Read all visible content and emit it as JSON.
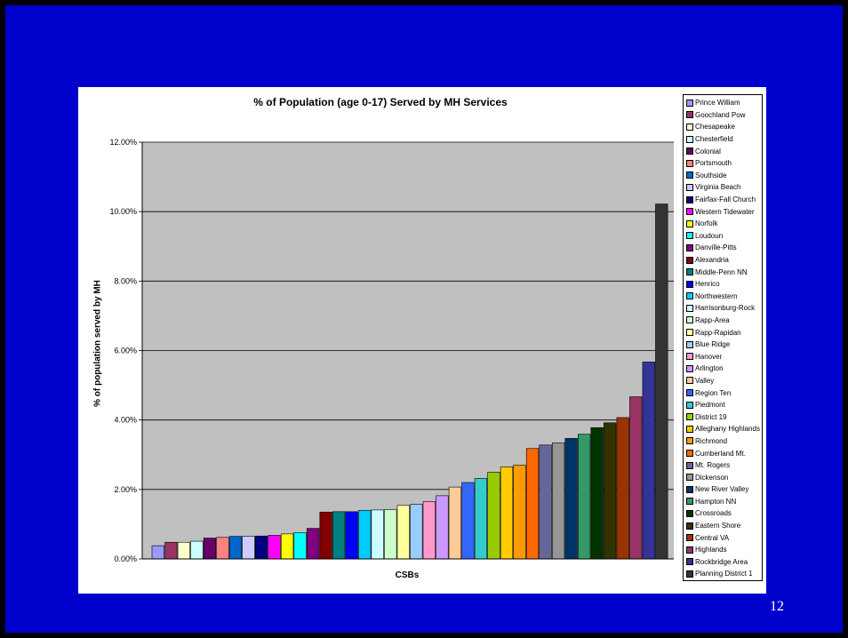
{
  "page_number": "12",
  "chart_data": {
    "type": "bar",
    "title": "% of Population (age 0-17) Served by MH Services",
    "xlabel": "CSBs",
    "ylabel": "% of population served by MH",
    "ylim": [
      0,
      0.12
    ],
    "y_ticks": [
      0,
      0.02,
      0.04,
      0.06,
      0.08,
      0.1,
      0.12
    ],
    "y_tick_labels": [
      "0.00%",
      "2.00%",
      "4.00%",
      "6.00%",
      "8.00%",
      "10.00%",
      "12.00%"
    ],
    "grid": true,
    "legend_position": "right",
    "plot_background": "#c0c0c0",
    "series": [
      {
        "name": "Prince William",
        "value": 0.0038,
        "color": "#9999ff"
      },
      {
        "name": "Goochland Pow",
        "value": 0.0048,
        "color": "#993366"
      },
      {
        "name": "Chesapeake",
        "value": 0.0048,
        "color": "#ffffcc"
      },
      {
        "name": "Chesterfield",
        "value": 0.0051,
        "color": "#ccffff"
      },
      {
        "name": "Colonial",
        "value": 0.006,
        "color": "#660066"
      },
      {
        "name": "Portsmouth",
        "value": 0.0062,
        "color": "#ff8080"
      },
      {
        "name": "Southside",
        "value": 0.0065,
        "color": "#0066cc"
      },
      {
        "name": "Virginia Beach",
        "value": 0.0065,
        "color": "#ccccff"
      },
      {
        "name": "Fairfax-Fall Church",
        "value": 0.0066,
        "color": "#000080"
      },
      {
        "name": "Western Tidewater",
        "value": 0.0068,
        "color": "#ff00ff"
      },
      {
        "name": "Norfolk",
        "value": 0.0072,
        "color": "#ffff00"
      },
      {
        "name": "Loudoun",
        "value": 0.0076,
        "color": "#00ffff"
      },
      {
        "name": "Danville-Pitts",
        "value": 0.0088,
        "color": "#800080"
      },
      {
        "name": "Alexandria",
        "value": 0.0135,
        "color": "#800000"
      },
      {
        "name": "Middle-Penn NN",
        "value": 0.0136,
        "color": "#008080"
      },
      {
        "name": "Henrico",
        "value": 0.0136,
        "color": "#0000ff"
      },
      {
        "name": "Northwestern",
        "value": 0.014,
        "color": "#00ccff"
      },
      {
        "name": "Harrisonburg-Rock",
        "value": 0.0141,
        "color": "#ccffff"
      },
      {
        "name": "Rapp-Area",
        "value": 0.0142,
        "color": "#ccffcc"
      },
      {
        "name": "Rapp-Rapidan",
        "value": 0.0154,
        "color": "#ffff99"
      },
      {
        "name": "Blue Ridge",
        "value": 0.0157,
        "color": "#99ccff"
      },
      {
        "name": "Hanover",
        "value": 0.0165,
        "color": "#ff99cc"
      },
      {
        "name": "Arlington",
        "value": 0.0182,
        "color": "#cc99ff"
      },
      {
        "name": "Valley",
        "value": 0.0207,
        "color": "#ffcc99"
      },
      {
        "name": "Region Ten",
        "value": 0.022,
        "color": "#3366ff"
      },
      {
        "name": "Piedmont",
        "value": 0.0232,
        "color": "#33cccc"
      },
      {
        "name": "District 19",
        "value": 0.025,
        "color": "#99cc00"
      },
      {
        "name": "Alleghany Highlands",
        "value": 0.0265,
        "color": "#ffcc00"
      },
      {
        "name": "Richmond",
        "value": 0.027,
        "color": "#ff9900"
      },
      {
        "name": "Cumberland Mt.",
        "value": 0.0318,
        "color": "#ff6600"
      },
      {
        "name": "Mt. Rogers",
        "value": 0.0328,
        "color": "#666699"
      },
      {
        "name": "Dickenson",
        "value": 0.0334,
        "color": "#969696"
      },
      {
        "name": "New River Valley",
        "value": 0.0347,
        "color": "#003366"
      },
      {
        "name": "Hampton NN",
        "value": 0.0359,
        "color": "#339966"
      },
      {
        "name": "Crossroads",
        "value": 0.0378,
        "color": "#003300"
      },
      {
        "name": "Eastern Shore",
        "value": 0.0392,
        "color": "#333300"
      },
      {
        "name": "Central VA",
        "value": 0.0407,
        "color": "#993300"
      },
      {
        "name": "Highlands",
        "value": 0.0467,
        "color": "#993366"
      },
      {
        "name": "Rockbridge Area",
        "value": 0.0567,
        "color": "#333399"
      },
      {
        "name": "Planning District 1",
        "value": 0.1022,
        "color": "#333333"
      }
    ]
  }
}
